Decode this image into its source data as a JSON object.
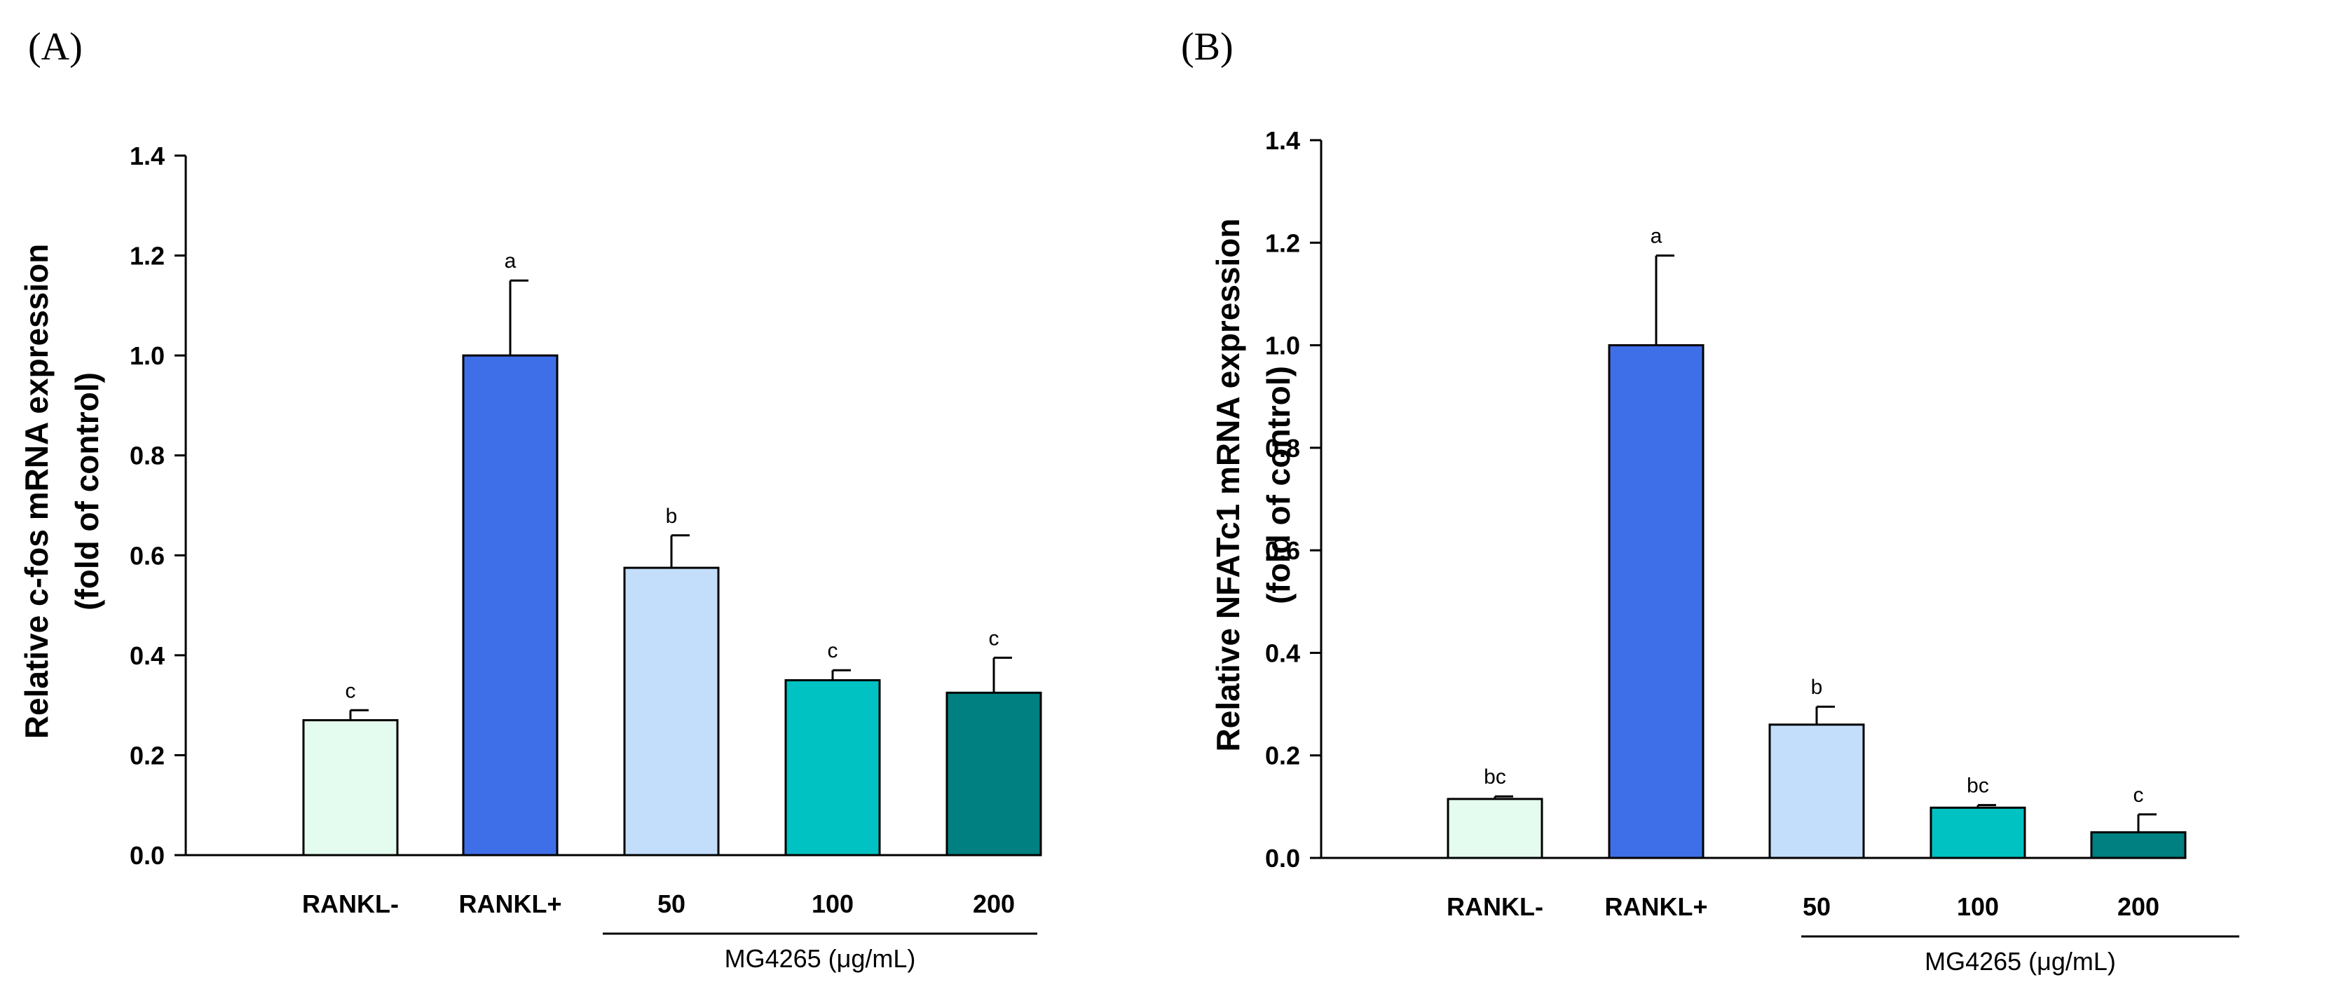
{
  "chart_data": [
    {
      "panel_label": "(A)",
      "type": "bar",
      "ylabel_line1": "Relative c-fos mRNA expression",
      "ylabel_line2": "(fold of control)",
      "xlabel": "",
      "ylim": [
        0,
        1.4
      ],
      "yticks": [
        "0.0",
        "0.2",
        "0.4",
        "0.6",
        "0.8",
        "1.0",
        "1.2",
        "1.4"
      ],
      "categories": [
        "RANKL-",
        "RANKL+",
        "50",
        "100",
        "200"
      ],
      "values": [
        0.27,
        1.0,
        0.575,
        0.35,
        0.325
      ],
      "errors": [
        0.02,
        0.15,
        0.065,
        0.02,
        0.07
      ],
      "significance": [
        "c",
        "a",
        "b",
        "c",
        "c"
      ],
      "bar_colors": [
        "#e4fbef",
        "#3f6fe8",
        "#c3defb",
        "#00c2c2",
        "#008080"
      ],
      "group_label": "MG4265 (μg/mL)",
      "grid": false
    },
    {
      "panel_label": "(B)",
      "type": "bar",
      "ylabel_line1": "Relative NFATc1 mRNA expression",
      "ylabel_line2": "(fold of control)",
      "xlabel": "",
      "ylim": [
        0,
        1.4
      ],
      "yticks": [
        "0.0",
        "0.2",
        "0.4",
        "0.6",
        "0.8",
        "1.0",
        "1.2",
        "1.4"
      ],
      "categories": [
        "RANKL-",
        "RANKL+",
        "50",
        "100",
        "200"
      ],
      "values": [
        0.115,
        1.0,
        0.26,
        0.098,
        0.05
      ],
      "errors": [
        0.005,
        0.175,
        0.035,
        0.005,
        0.035
      ],
      "significance": [
        "bc",
        "a",
        "b",
        "bc",
        "c"
      ],
      "bar_colors": [
        "#e4fbef",
        "#3f6fe8",
        "#c3defb",
        "#00c2c2",
        "#008080"
      ],
      "group_label": "MG4265 (μg/mL)",
      "grid": false
    }
  ]
}
